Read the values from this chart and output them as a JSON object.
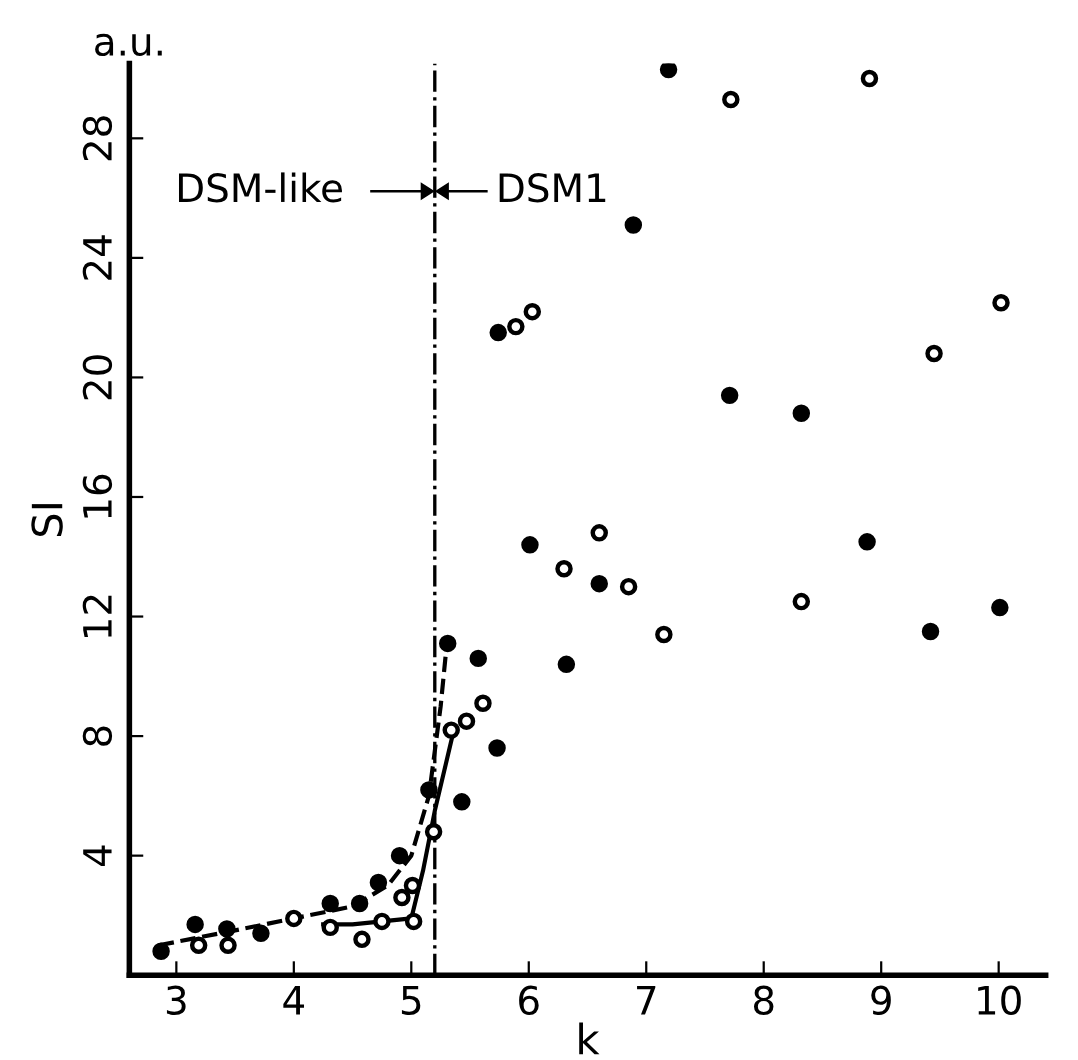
{
  "chart_data": {
    "type": "scatter",
    "xlabel": "k",
    "ylabel": "SI",
    "xlim": [
      2.6,
      10.4
    ],
    "xticks": [
      3,
      4,
      5,
      6,
      7,
      8,
      9,
      10
    ],
    "ylim": [
      0,
      30.5
    ],
    "yticks": [
      4,
      8,
      12,
      16,
      20,
      24,
      28
    ],
    "grid": false,
    "legend": false,
    "series": [
      {
        "color": "#000000",
        "marker": "circle",
        "x": [
          2.87,
          3.16,
          3.43,
          3.72,
          4.31,
          4.56,
          4.72,
          4.9,
          5.15,
          5.31,
          5.43,
          5.57,
          5.73,
          5.74,
          6.01,
          6.32,
          6.6,
          6.89,
          7.19,
          7.71,
          8.32,
          8.88,
          9.42,
          10.01
        ],
        "values": [
          0.8,
          1.7,
          1.55,
          1.4,
          2.4,
          2.4,
          3.1,
          4.0,
          6.2,
          11.1,
          5.8,
          10.6,
          7.6,
          21.5,
          14.4,
          10.4,
          13.1,
          25.1,
          30.3,
          19.4,
          18.8,
          14.5,
          11.5,
          12.3
        ]
      },
      {
        "color": "#000000",
        "marker": "circle",
        "x": [
          3.19,
          3.44,
          4.0,
          4.31,
          4.58,
          4.75,
          4.92,
          5.01,
          5.02,
          5.19,
          5.34,
          5.47,
          5.61,
          5.89,
          6.03,
          6.3,
          6.6,
          6.85,
          7.15,
          7.72,
          8.32,
          8.9,
          9.45,
          10.02
        ],
        "values": [
          1.0,
          1.0,
          1.9,
          1.6,
          1.2,
          1.8,
          2.6,
          3.0,
          1.8,
          4.8,
          8.2,
          8.5,
          9.1,
          21.7,
          22.2,
          13.6,
          14.8,
          13.0,
          11.4,
          29.3,
          12.5,
          30.0,
          20.8,
          22.5
        ]
      },
      {
        "type": "line",
        "color": "#000000",
        "line_style": "dashed",
        "x": [
          2.85,
          3.5,
          4.0,
          4.5,
          4.8,
          5.0,
          5.15,
          5.25,
          5.3
        ],
        "values": [
          1.0,
          1.5,
          1.9,
          2.3,
          3.0,
          4.0,
          6.0,
          9.0,
          11.0
        ]
      },
      {
        "type": "line",
        "color": "#000000",
        "line_style": "solid",
        "x": [
          4.25,
          4.5,
          5.0,
          5.1,
          5.2,
          5.35
        ],
        "values": [
          1.7,
          1.7,
          1.9,
          3.5,
          5.5,
          8.0
        ]
      }
    ],
    "ref_lines": [
      {
        "axis": "x",
        "value": 5.2,
        "color": "#000000",
        "line_style": "dashdot"
      }
    ],
    "annotations": [
      "DSM-like",
      "DSM1",
      "a.u."
    ]
  }
}
